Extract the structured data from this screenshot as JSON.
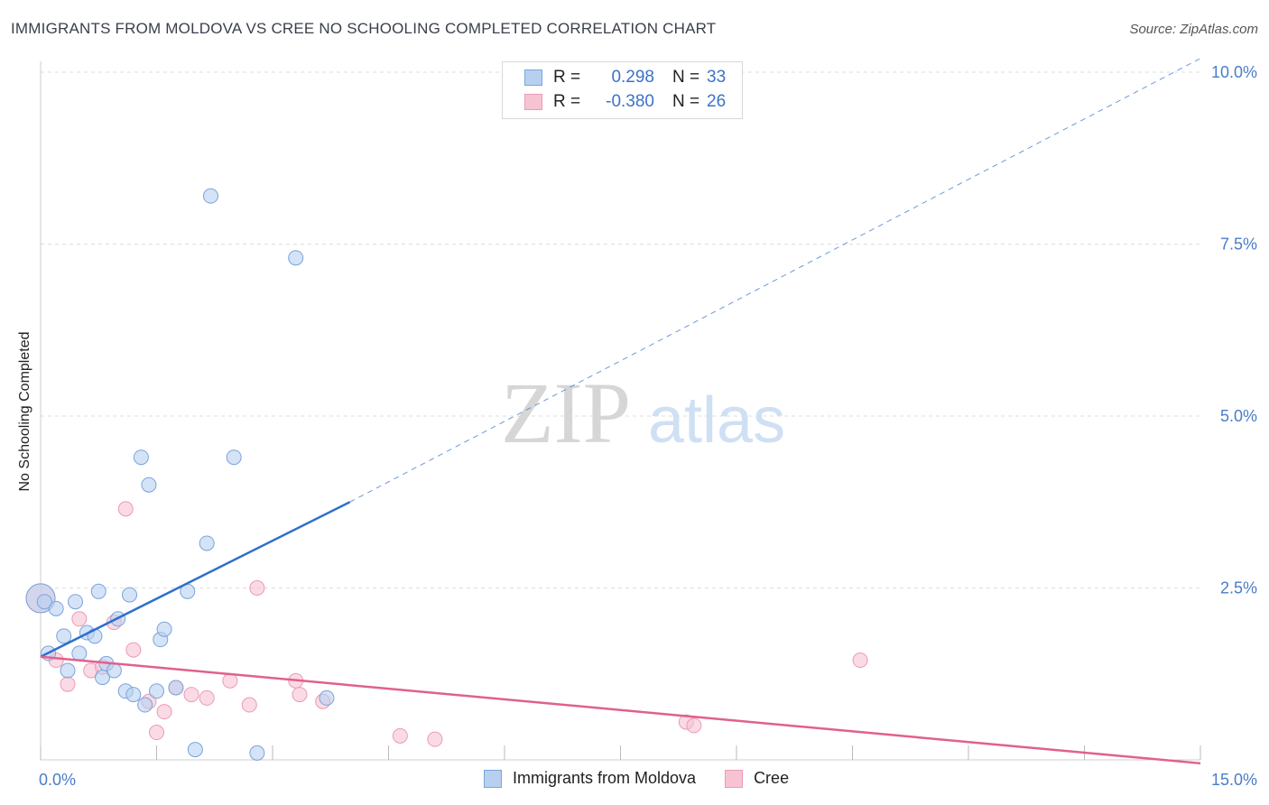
{
  "header": {
    "title": "IMMIGRANTS FROM MOLDOVA VS CREE NO SCHOOLING COMPLETED CORRELATION CHART",
    "source": "Source: ZipAtlas.com"
  },
  "watermark": {
    "part1": "ZIP",
    "part2": "atlas"
  },
  "legend_top": {
    "rows": [
      {
        "r_label": "R =",
        "r_value": "0.298",
        "n_label": "N =",
        "n_value": "33"
      },
      {
        "r_label": "R =",
        "r_value": "-0.380",
        "n_label": "N =",
        "n_value": "26"
      }
    ]
  },
  "legend_bottom": {
    "items": [
      {
        "label": "Immigrants from Moldova"
      },
      {
        "label": "Cree"
      }
    ]
  },
  "colors": {
    "series1_fill": "#b8d0f0",
    "series1_stroke": "#7aa4dc",
    "series1_line": "#2f6fcc",
    "series2_fill": "#f7c3d3",
    "series2_stroke": "#ec9ab4",
    "series2_line": "#e0608e",
    "grid": "#dddddd",
    "tick_text": "#4a7cc8"
  },
  "chart_data": {
    "type": "scatter",
    "title": "IMMIGRANTS FROM MOLDOVA VS CREE NO SCHOOLING COMPLETED CORRELATION CHART",
    "xlabel": "",
    "ylabel": "No Schooling Completed",
    "xlim": [
      0,
      15
    ],
    "ylim": [
      0,
      10
    ],
    "x_tick_labels": [
      {
        "value": 0,
        "label": "0.0%"
      },
      {
        "value": 15,
        "label": "15.0%"
      }
    ],
    "y_tick_labels": [
      {
        "value": 2.5,
        "label": "2.5%"
      },
      {
        "value": 5.0,
        "label": "5.0%"
      },
      {
        "value": 7.5,
        "label": "7.5%"
      },
      {
        "value": 10.0,
        "label": "10.0%"
      }
    ],
    "grid": true,
    "legend_position": "bottom",
    "series": [
      {
        "name": "Immigrants from Moldova",
        "points": [
          [
            0.0,
            2.35
          ],
          [
            0.1,
            1.55
          ],
          [
            0.2,
            2.2
          ],
          [
            0.3,
            1.8
          ],
          [
            0.35,
            1.3
          ],
          [
            0.45,
            2.3
          ],
          [
            0.5,
            1.55
          ],
          [
            0.6,
            1.85
          ],
          [
            0.7,
            1.8
          ],
          [
            0.75,
            2.45
          ],
          [
            0.8,
            1.2
          ],
          [
            0.85,
            1.4
          ],
          [
            0.95,
            1.3
          ],
          [
            1.0,
            2.05
          ],
          [
            1.1,
            1.0
          ],
          [
            1.15,
            2.4
          ],
          [
            1.2,
            0.95
          ],
          [
            1.3,
            4.4
          ],
          [
            1.35,
            0.8
          ],
          [
            1.4,
            4.0
          ],
          [
            1.5,
            1.0
          ],
          [
            1.55,
            1.75
          ],
          [
            1.6,
            1.9
          ],
          [
            1.75,
            1.05
          ],
          [
            1.9,
            2.45
          ],
          [
            2.0,
            0.15
          ],
          [
            2.15,
            3.15
          ],
          [
            2.2,
            8.2
          ],
          [
            2.5,
            4.4
          ],
          [
            2.8,
            0.1
          ],
          [
            3.3,
            7.3
          ],
          [
            3.7,
            0.9
          ],
          [
            0.05,
            2.3
          ]
        ],
        "trend": {
          "x0": 0.0,
          "y0": 1.5,
          "x1": 4.0,
          "y1": 3.75,
          "dashed_to_x": 15.0,
          "dashed_to_y": 10.2
        }
      },
      {
        "name": "Cree",
        "points": [
          [
            0.0,
            2.35
          ],
          [
            0.2,
            1.45
          ],
          [
            0.35,
            1.1
          ],
          [
            0.5,
            2.05
          ],
          [
            0.65,
            1.3
          ],
          [
            0.8,
            1.35
          ],
          [
            0.95,
            2.0
          ],
          [
            1.1,
            3.65
          ],
          [
            1.2,
            1.6
          ],
          [
            1.4,
            0.85
          ],
          [
            1.5,
            0.4
          ],
          [
            1.6,
            0.7
          ],
          [
            1.75,
            1.05
          ],
          [
            1.95,
            0.95
          ],
          [
            2.15,
            0.9
          ],
          [
            2.45,
            1.15
          ],
          [
            2.7,
            0.8
          ],
          [
            2.8,
            2.5
          ],
          [
            3.3,
            1.15
          ],
          [
            3.35,
            0.95
          ],
          [
            3.65,
            0.85
          ],
          [
            4.65,
            0.35
          ],
          [
            5.1,
            0.3
          ],
          [
            8.35,
            0.55
          ],
          [
            8.45,
            0.5
          ],
          [
            10.6,
            1.45
          ]
        ],
        "trend": {
          "x0": 0.0,
          "y0": 1.5,
          "x1": 15.0,
          "y1": -0.05
        }
      }
    ]
  }
}
